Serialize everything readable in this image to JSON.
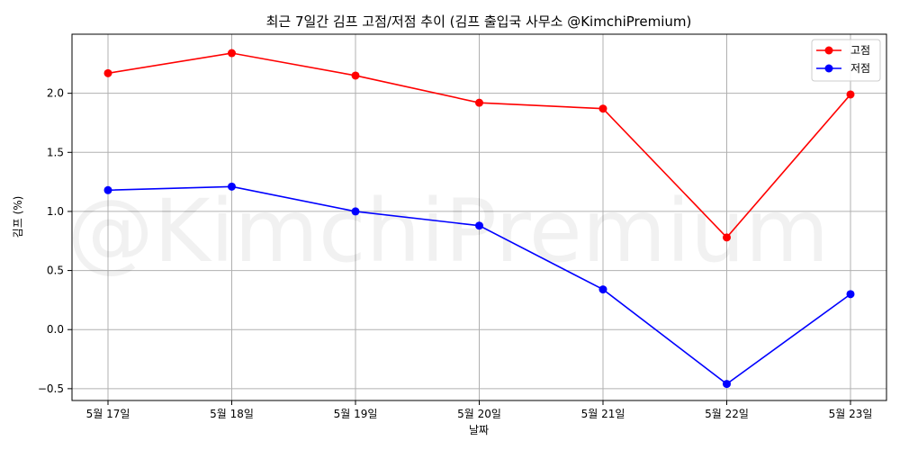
{
  "chart_data": {
    "type": "line",
    "title": "최근 7일간 김프 고점/저점 추이 (김프 출입국 사무소 @KimchiPremium)",
    "xlabel": "날짜",
    "ylabel": "김프 (%)",
    "watermark": "@KimchiPremium",
    "categories": [
      "5월 17일",
      "5월 18일",
      "5월 19일",
      "5월 20일",
      "5월 21일",
      "5월 22일",
      "5월 23일"
    ],
    "ylim": [
      -0.6,
      2.5
    ],
    "yticks": [
      -0.5,
      0.0,
      0.5,
      1.0,
      1.5,
      2.0
    ],
    "ytick_labels": [
      "−0.5",
      "0.0",
      "0.5",
      "1.0",
      "1.5",
      "2.0"
    ],
    "grid": true,
    "legend_position": "top-right",
    "series": [
      {
        "name": "고점",
        "color": "#ff0000",
        "values": [
          2.17,
          2.34,
          2.15,
          1.92,
          1.87,
          0.78,
          1.99
        ]
      },
      {
        "name": "저점",
        "color": "#0000ff",
        "values": [
          1.18,
          1.21,
          1.0,
          0.88,
          0.34,
          -0.46,
          0.3
        ]
      }
    ]
  }
}
